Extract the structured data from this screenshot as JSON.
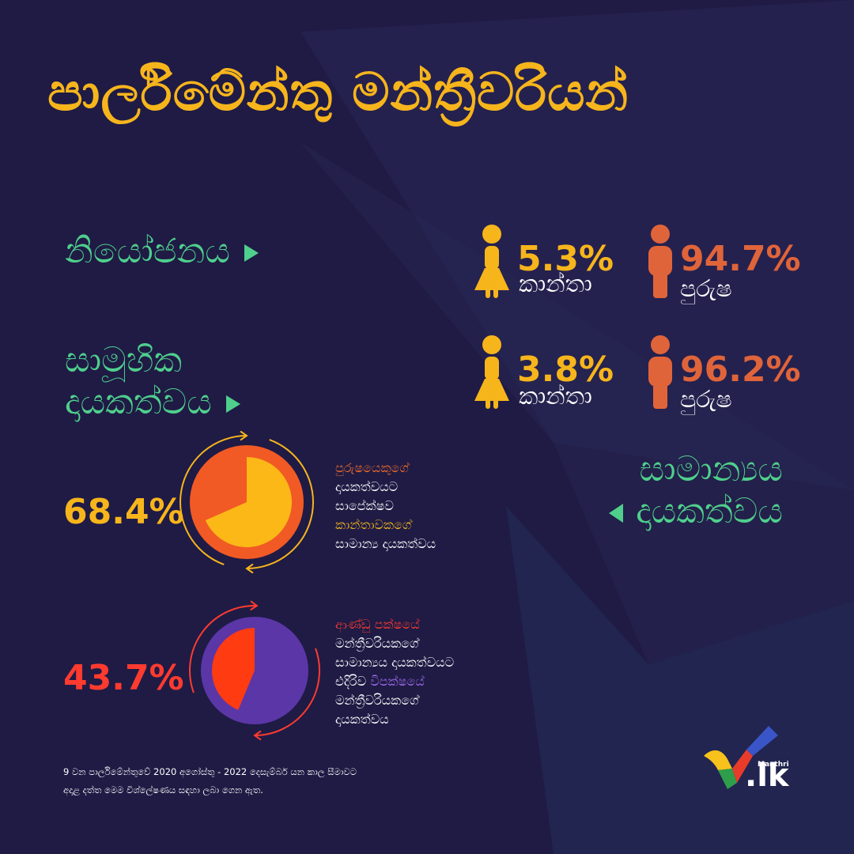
{
  "title": "පාර්ලිමේන්තු මන්ත්‍රීවරියන්",
  "colors": {
    "background": "#1f1b45",
    "female": "#f7b51c",
    "male": "#e0643a",
    "accent_green": "#4fcf8c",
    "pie1_outer": "#f15a24",
    "pie1_slice": "#fbb817",
    "pie2_outer": "#5b36a6",
    "pie2_slice": "#ff3b12"
  },
  "representation": {
    "label": "නියෝජනය",
    "female": {
      "icon": "female-person-icon",
      "pct": "5.3%",
      "label": "කාන්තා"
    },
    "male": {
      "icon": "male-person-icon",
      "pct": "94.7%",
      "label": "පුරුෂ"
    }
  },
  "collective": {
    "label_line1": "සාමූහික",
    "label_line2": "දායකත්වය",
    "female": {
      "icon": "female-person-icon",
      "pct": "3.8%",
      "label": "කාන්තා"
    },
    "male": {
      "icon": "male-person-icon",
      "pct": "96.2%",
      "label": "පුරුෂ"
    }
  },
  "average": {
    "label_line1": "සාමාන්‍යය",
    "label_line2": "දායකත්වය"
  },
  "chart_data": [
    {
      "type": "pie",
      "values": [
        68.4,
        31.6
      ],
      "slice_colors": [
        "#fbb817",
        "#f15a24"
      ],
      "value_label": "68.4%",
      "desc": {
        "line1": "පුරුෂයෙකුගේ",
        "line2": "දායකත්වයට",
        "line3": "සාපේක්ෂව",
        "line4": "කාන්තාවකගේ",
        "line5": "සාමාන්‍ය දායකත්වය"
      }
    },
    {
      "type": "pie",
      "values": [
        43.7,
        56.3
      ],
      "slice_colors": [
        "#ff3b12",
        "#5b36a6"
      ],
      "value_label": "43.7%",
      "desc": {
        "line1": "ආණ්ඩු පක්ෂයේ",
        "line2": "මන්ත්‍රීවරියකගේ",
        "line3": "සාමාන්‍යය දායකත්වයට",
        "line4_part1": "එදිරිව ",
        "line4_part2": "විපක්ෂයේ",
        "line5": "මන්ත්‍රීවරියකගේ",
        "line6": "දායකත්වය"
      }
    }
  ],
  "footnote": {
    "line1": "9 වන පාර්ලිමේන්තුවේ 2020 අගෝස්තු - 2022 දෙසැම්බර් යන කාල සීමාවට",
    "line2": "අදාළ දත්ත මෙම විශ්ලේෂණය සඳහා ලබා ගෙන ඇත."
  },
  "logo": {
    "small": "Manthri",
    "main": ".lk"
  }
}
